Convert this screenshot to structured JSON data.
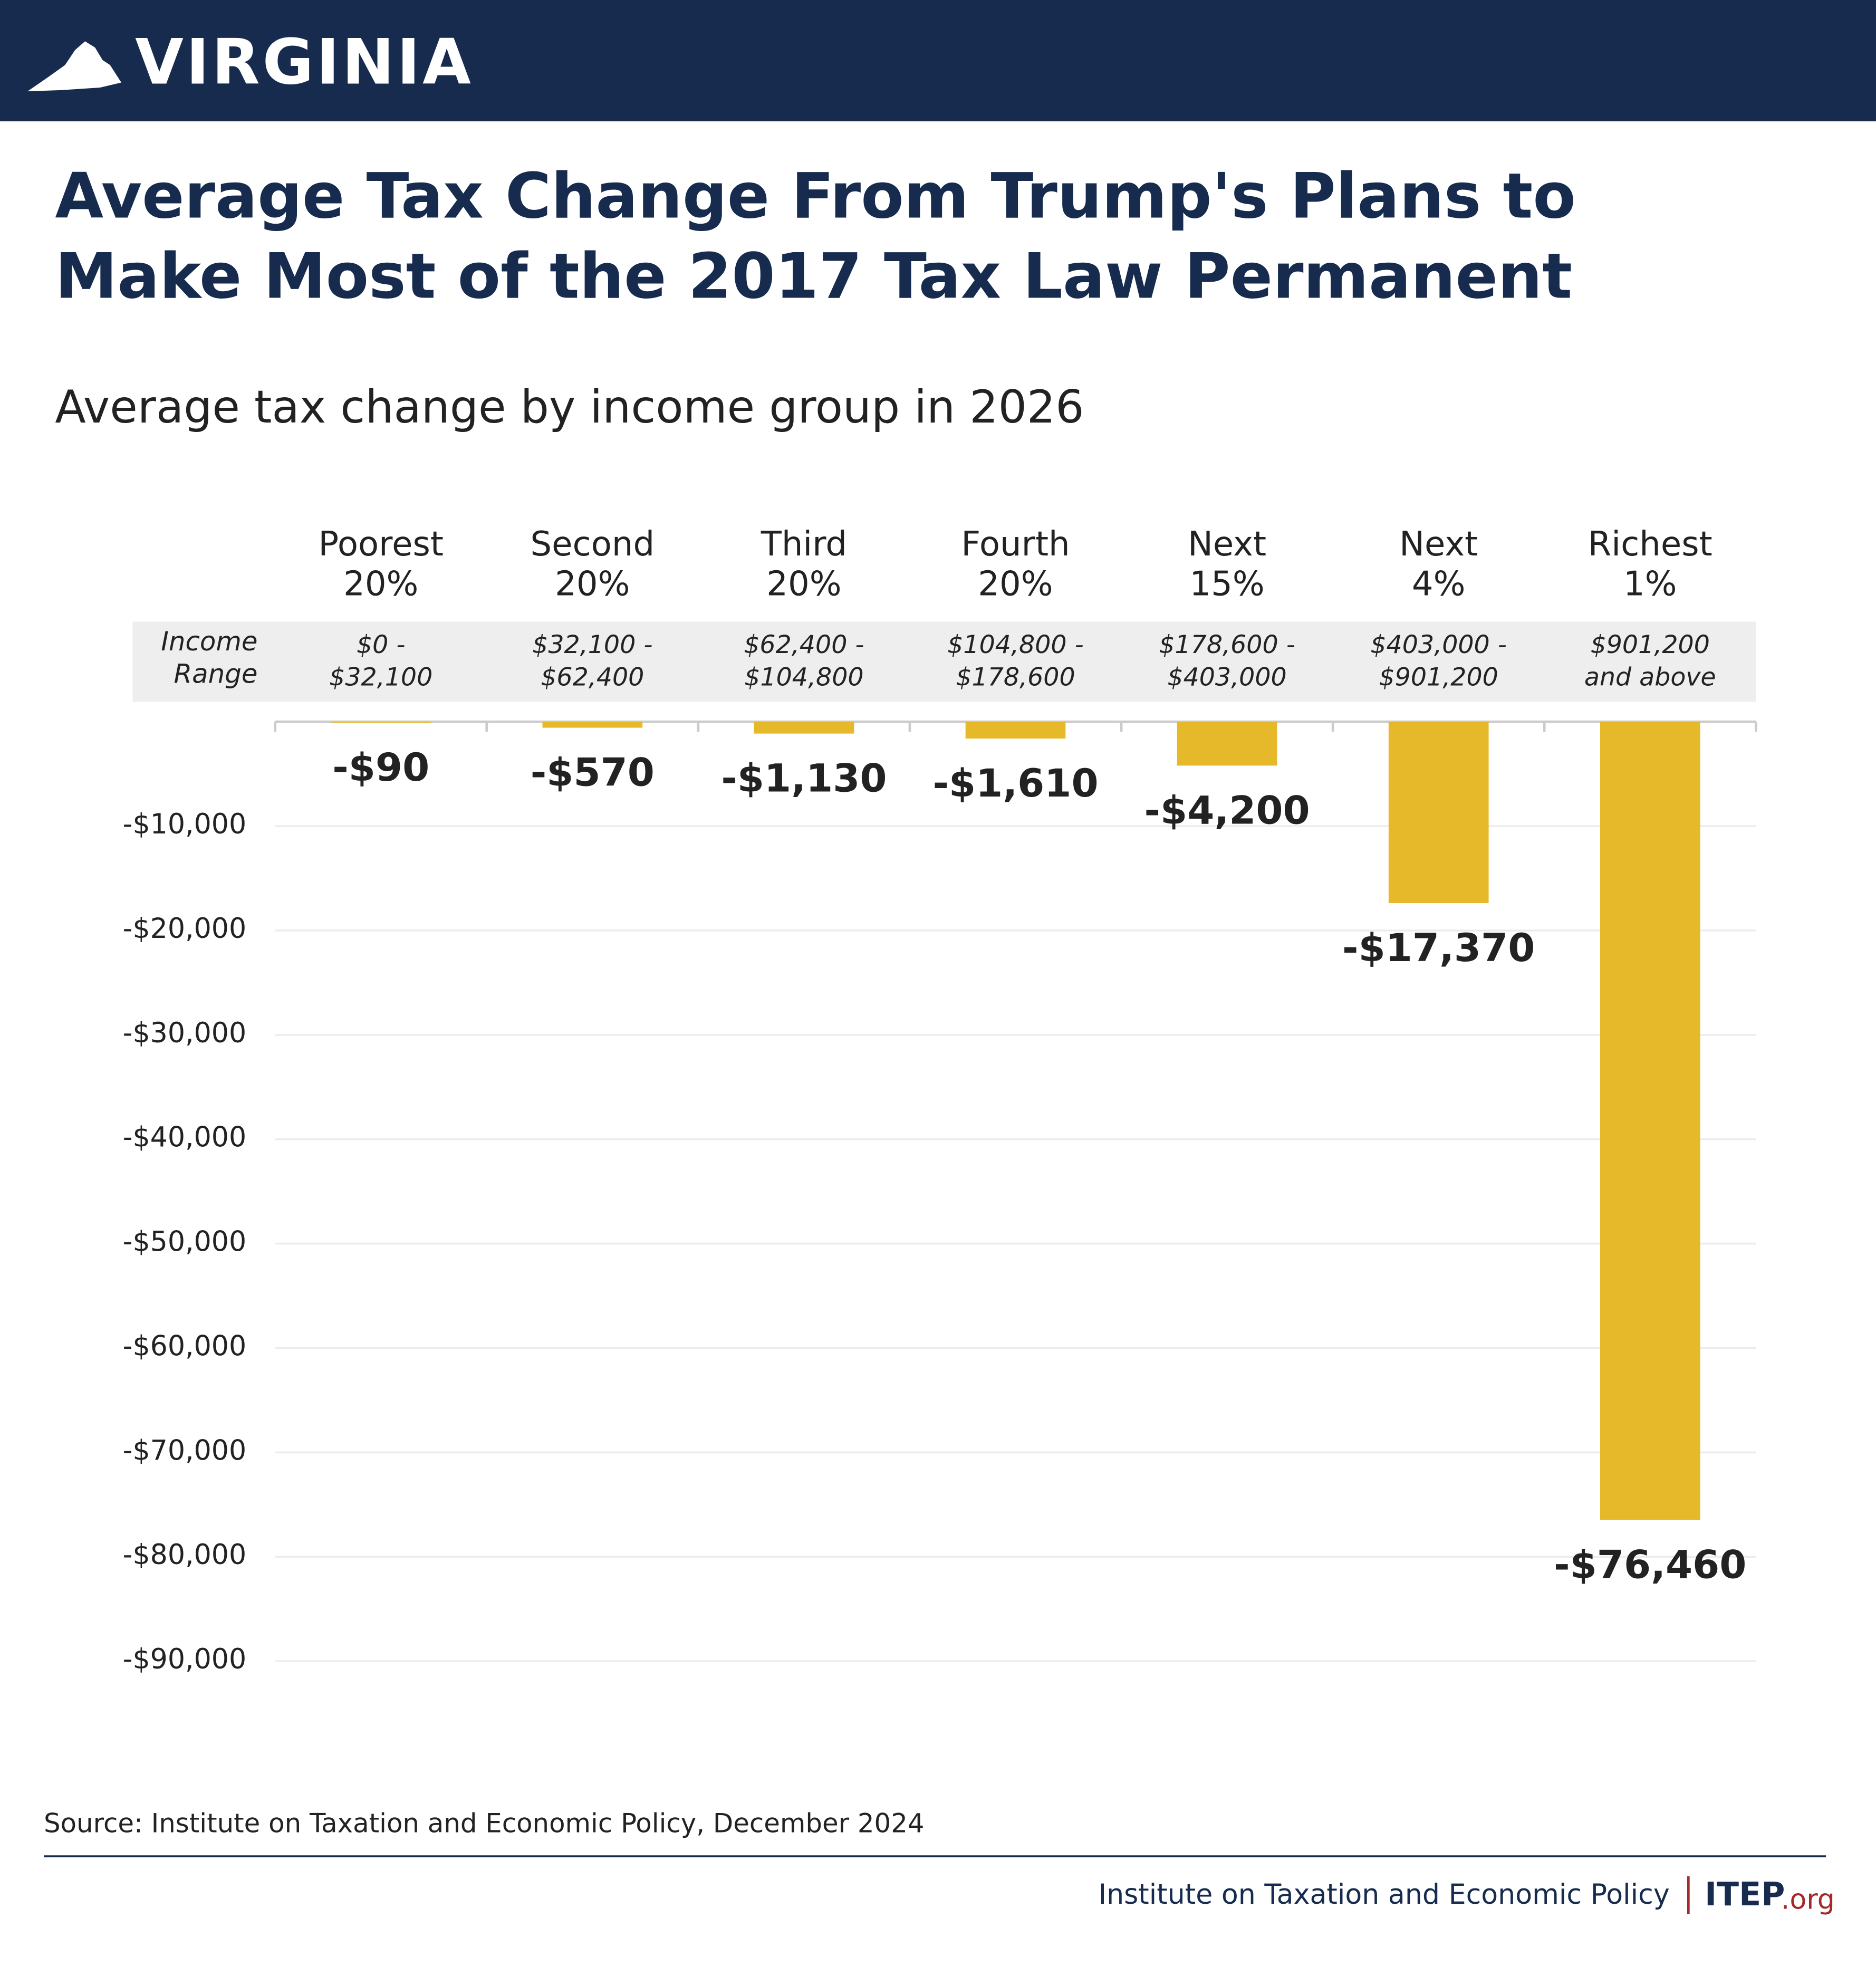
{
  "header": {
    "state": "VIRGINIA"
  },
  "chart_data": {
    "type": "bar",
    "title": "Average Tax Change From Trump's Plans to Make Most of the 2017 Tax Law Permanent",
    "subtitle": "Average tax change by income group in 2026",
    "categories": [
      "Poorest 20%",
      "Second 20%",
      "Third 20%",
      "Fourth 20%",
      "Next 15%",
      "Next 4%",
      "Richest 1%"
    ],
    "income_range_label": "Income Range",
    "income_ranges": [
      [
        "$0 -",
        "$32,100"
      ],
      [
        "$32,100 -",
        "$62,400"
      ],
      [
        "$62,400 -",
        "$104,800"
      ],
      [
        "$104,800 -",
        "$178,600"
      ],
      [
        "$178,600 -",
        "$403,000"
      ],
      [
        "$403,000 -",
        "$901,200"
      ],
      [
        "$901,200",
        "and above"
      ]
    ],
    "values": [
      -90,
      -570,
      -1130,
      -1610,
      -4200,
      -17370,
      -76460
    ],
    "value_labels": [
      "-$90",
      "-$570",
      "-$1,130",
      "-$1,610",
      "-$4,200",
      "-$17,370",
      "-$76,460"
    ],
    "color": "#e6b92b",
    "ylim": [
      -90000,
      0
    ],
    "yticks": [
      {
        "value": -10000,
        "label": "-$10,000"
      },
      {
        "value": -20000,
        "label": "-$20,000"
      },
      {
        "value": -30000,
        "label": "-$30,000"
      },
      {
        "value": -40000,
        "label": "-$40,000"
      },
      {
        "value": -50000,
        "label": "-$50,000"
      },
      {
        "value": -60000,
        "label": "-$60,000"
      },
      {
        "value": -70000,
        "label": "-$70,000"
      },
      {
        "value": -80000,
        "label": "-$80,000"
      },
      {
        "value": -90000,
        "label": "-$90,000"
      }
    ],
    "grid": true,
    "source": "Source: Institute on Taxation and Economic Policy, December 2024"
  },
  "footer": {
    "organization": "Institute on Taxation and Economic Policy",
    "logo": "ITEP",
    "logo_suffix": ".org"
  }
}
